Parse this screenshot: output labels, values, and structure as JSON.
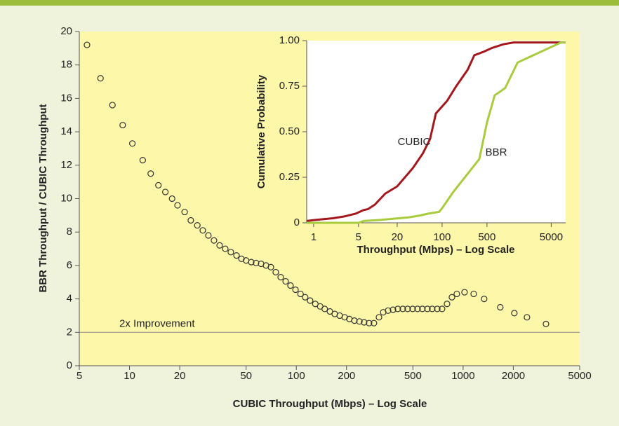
{
  "chart_data": [
    {
      "type": "scatter",
      "x_label": "CUBIC Throughput (Mbps) – Log Scale",
      "y_label": "BBR Throughput / CUBIC Throughput",
      "x_log": true,
      "xlim": [
        5,
        5000
      ],
      "xticks": [
        5,
        10,
        20,
        50,
        100,
        200,
        500,
        1000,
        2000,
        5000
      ],
      "ylim": [
        0,
        20
      ],
      "yticks": [
        0,
        2,
        4,
        6,
        8,
        10,
        12,
        14,
        16,
        18,
        20
      ],
      "color": "#333333",
      "reference_line": {
        "value": 2,
        "label": "2x Improvement"
      },
      "x": [
        5.56,
        6.7,
        7.9,
        9.1,
        10.4,
        12.0,
        13.4,
        14.9,
        16.4,
        18.0,
        19.4,
        21.4,
        23.3,
        25.5,
        27.5,
        29.7,
        32.1,
        34.7,
        37.5,
        40.5,
        43.8,
        46.9,
        50,
        53.7,
        57.4,
        61.5,
        65.8,
        70.4,
        75.3,
        80.6,
        86.3,
        92.3,
        98.9,
        106,
        113,
        121,
        130,
        139,
        148,
        159,
        170,
        182,
        195,
        208,
        223,
        239,
        255,
        273,
        292,
        313,
        332,
        355,
        380,
        406,
        435,
        465,
        498,
        533,
        570,
        611,
        653,
        700,
        748,
        801,
        857,
        917,
        1020,
        1157,
        1337,
        1671,
        2028,
        2415,
        3139
      ],
      "values": [
        19.2,
        17.2,
        15.6,
        14.4,
        13.3,
        12.3,
        11.5,
        10.8,
        10.4,
        10.0,
        9.6,
        9.2,
        8.7,
        8.4,
        8.1,
        7.8,
        7.5,
        7.2,
        7.0,
        6.8,
        6.6,
        6.4,
        6.3,
        6.2,
        6.15,
        6.1,
        6.0,
        5.9,
        5.6,
        5.3,
        5.05,
        4.8,
        4.55,
        4.3,
        4.1,
        3.9,
        3.7,
        3.55,
        3.4,
        3.25,
        3.1,
        3.0,
        2.9,
        2.8,
        2.7,
        2.65,
        2.6,
        2.55,
        2.55,
        2.9,
        3.2,
        3.3,
        3.35,
        3.4,
        3.4,
        3.4,
        3.4,
        3.4,
        3.4,
        3.4,
        3.4,
        3.4,
        3.4,
        3.7,
        4.1,
        4.3,
        4.4,
        4.3,
        4.0,
        3.5,
        3.15,
        2.9,
        2.5
      ]
    },
    {
      "type": "line",
      "x_label": "Throughput (Mbps) – Log Scale",
      "y_label": "Cumulative Probability",
      "x_log": true,
      "xlim": [
        0.78,
        8400
      ],
      "xticks": [
        1,
        5,
        20,
        100,
        500,
        5000
      ],
      "ylim": [
        0,
        1
      ],
      "yticks": [
        0,
        0.25,
        {
          "value": 0.5,
          "label": "0.50"
        },
        0.75,
        {
          "value": 1,
          "label": "1.00"
        }
      ],
      "series": [
        {
          "name": "CUBIC",
          "color": "#a3171d",
          "x": [
            0.78,
            1,
            2,
            3,
            4.5,
            6,
            7,
            9,
            13,
            20,
            25,
            35,
            50,
            65,
            80,
            120,
            166,
            250,
            318,
            380,
            450,
            600,
            900,
            1300,
            8400
          ],
          "values": [
            0.01,
            0.015,
            0.025,
            0.035,
            0.05,
            0.07,
            0.075,
            0.1,
            0.16,
            0.2,
            0.24,
            0.3,
            0.38,
            0.46,
            0.6,
            0.67,
            0.75,
            0.84,
            0.92,
            0.93,
            0.94,
            0.96,
            0.98,
            0.99,
            0.99
          ]
        },
        {
          "name": "BBR",
          "color": "#a8cc3c",
          "x": [
            0.78,
            5,
            6,
            10,
            15,
            30,
            45,
            60,
            90,
            100,
            150,
            380,
            500,
            660,
            800,
            960,
            1500,
            7100,
            8400
          ],
          "values": [
            0,
            0,
            0.01,
            0.015,
            0.02,
            0.03,
            0.04,
            0.05,
            0.06,
            0.08,
            0.17,
            0.35,
            0.55,
            0.7,
            0.72,
            0.74,
            0.88,
            0.99,
            0.99
          ]
        }
      ]
    }
  ]
}
